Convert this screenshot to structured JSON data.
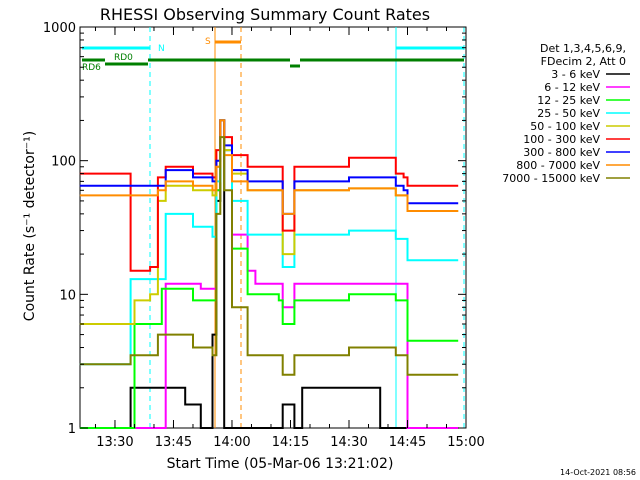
{
  "chart_data": {
    "type": "line",
    "title": "RHESSI Observing Summary Count Rates",
    "xlabel": "Start Time (05-Mar-06 13:21:02)",
    "ylabel": "Count Rate (s⁻¹ detector⁻¹)",
    "y_scale": "log",
    "ylim": [
      1,
      1000
    ],
    "xlim": [
      "13:21:02",
      "15:00:00"
    ],
    "x_ticks": [
      "13:30",
      "13:45",
      "14:00",
      "14:15",
      "14:30",
      "14:45",
      "15:00"
    ],
    "y_ticks": [
      "1",
      "10",
      "100",
      "1000"
    ],
    "legend_header": [
      "Det 1,3,4,5,6,9,",
      "FDecim 2, Att 0"
    ],
    "legend_position": "right",
    "timestamp": "14-Oct-2021 08:56",
    "flags": [
      {
        "label": "N",
        "color": "#00ffff"
      },
      {
        "label": "S",
        "color": "#ff8c00"
      },
      {
        "label": "RD0",
        "color": "#007f00"
      },
      {
        "label": "RD6",
        "color": "#007f00"
      }
    ],
    "series": [
      {
        "name": "3 - 6 keV",
        "color": "#000000",
        "points": [
          [
            "13:21",
            1
          ],
          [
            "13:33",
            1
          ],
          [
            "13:34",
            2
          ],
          [
            "13:41",
            2
          ],
          [
            "13:48",
            1.5
          ],
          [
            "13:52",
            1
          ],
          [
            "13:55",
            5
          ],
          [
            "13:56",
            50
          ],
          [
            "13:57",
            200
          ],
          [
            "13:58",
            1
          ],
          [
            "14:04",
            1
          ],
          [
            "14:06",
            1
          ],
          [
            "14:12",
            1
          ],
          [
            "14:13",
            1.5
          ],
          [
            "14:16",
            1
          ],
          [
            "14:18",
            2
          ],
          [
            "14:35",
            2
          ],
          [
            "14:38",
            1
          ],
          [
            "14:58",
            1
          ]
        ]
      },
      {
        "name": "6 - 12 keV",
        "color": "#ff00ff",
        "points": [
          [
            "13:21",
            1
          ],
          [
            "13:42",
            1
          ],
          [
            "13:43",
            12
          ],
          [
            "13:48",
            12
          ],
          [
            "13:52",
            11
          ],
          [
            "13:54",
            11
          ],
          [
            "13:56",
            60
          ],
          [
            "13:57",
            200
          ],
          [
            "13:58",
            120
          ],
          [
            "14:00",
            28
          ],
          [
            "14:04",
            15
          ],
          [
            "14:06",
            12
          ],
          [
            "14:12",
            12
          ],
          [
            "14:13",
            8
          ],
          [
            "14:16",
            12
          ],
          [
            "14:30",
            12
          ],
          [
            "14:42",
            12
          ],
          [
            "14:44",
            12
          ],
          [
            "14:45",
            1
          ],
          [
            "14:58",
            1
          ]
        ]
      },
      {
        "name": "12 - 25 keV",
        "color": "#00ff00",
        "points": [
          [
            "13:21",
            1
          ],
          [
            "13:34",
            1
          ],
          [
            "13:35",
            6
          ],
          [
            "13:41",
            6
          ],
          [
            "13:42",
            11
          ],
          [
            "13:50",
            9
          ],
          [
            "13:55",
            9
          ],
          [
            "13:56",
            60
          ],
          [
            "13:57",
            200
          ],
          [
            "13:58",
            120
          ],
          [
            "14:00",
            22
          ],
          [
            "14:04",
            10
          ],
          [
            "14:12",
            9
          ],
          [
            "14:13",
            6
          ],
          [
            "14:16",
            9
          ],
          [
            "14:30",
            10
          ],
          [
            "14:42",
            9
          ],
          [
            "14:44",
            9
          ],
          [
            "14:45",
            4.5
          ],
          [
            "14:58",
            4.5
          ]
        ]
      },
      {
        "name": "25 - 50 keV",
        "color": "#00ffff",
        "points": [
          [
            "13:21",
            3
          ],
          [
            "13:33",
            3
          ],
          [
            "13:34",
            13
          ],
          [
            "13:41",
            13
          ],
          [
            "13:43",
            40
          ],
          [
            "13:50",
            32
          ],
          [
            "13:55",
            27
          ],
          [
            "13:56",
            70
          ],
          [
            "13:57",
            200
          ],
          [
            "13:58",
            120
          ],
          [
            "14:00",
            50
          ],
          [
            "14:04",
            28
          ],
          [
            "14:12",
            28
          ],
          [
            "14:13",
            16
          ],
          [
            "14:16",
            28
          ],
          [
            "14:30",
            30
          ],
          [
            "14:42",
            26
          ],
          [
            "14:44",
            26
          ],
          [
            "14:45",
            18
          ],
          [
            "14:58",
            18
          ]
        ]
      },
      {
        "name": "50 - 100 keV",
        "color": "#cccc00",
        "points": [
          [
            "13:21",
            6
          ],
          [
            "13:34",
            6
          ],
          [
            "13:35",
            9
          ],
          [
            "13:39",
            10
          ],
          [
            "13:41",
            50
          ],
          [
            "13:43",
            65
          ],
          [
            "13:50",
            60
          ],
          [
            "13:55",
            55
          ],
          [
            "13:56",
            90
          ],
          [
            "13:57",
            200
          ],
          [
            "13:58",
            120
          ],
          [
            "14:00",
            80
          ],
          [
            "14:04",
            60
          ],
          [
            "14:12",
            60
          ],
          [
            "14:13",
            20
          ],
          [
            "14:16",
            60
          ],
          [
            "14:30",
            62
          ],
          [
            "14:42",
            55
          ],
          [
            "14:44",
            55
          ],
          [
            "14:45",
            42
          ],
          [
            "14:58",
            42
          ]
        ]
      },
      {
        "name": "100 - 300 keV",
        "color": "#ff0000",
        "points": [
          [
            "13:21",
            80
          ],
          [
            "13:33",
            80
          ],
          [
            "13:34",
            15
          ],
          [
            "13:39",
            16
          ],
          [
            "13:41",
            75
          ],
          [
            "13:43",
            90
          ],
          [
            "13:50",
            80
          ],
          [
            "13:55",
            75
          ],
          [
            "13:56",
            120
          ],
          [
            "13:57",
            200
          ],
          [
            "13:58",
            150
          ],
          [
            "14:00",
            110
          ],
          [
            "14:04",
            90
          ],
          [
            "14:12",
            90
          ],
          [
            "14:13",
            30
          ],
          [
            "14:16",
            90
          ],
          [
            "14:30",
            105
          ],
          [
            "14:42",
            80
          ],
          [
            "14:44",
            75
          ],
          [
            "14:45",
            65
          ],
          [
            "14:58",
            65
          ]
        ]
      },
      {
        "name": "300 - 800 keV",
        "color": "#0000ff",
        "points": [
          [
            "13:21",
            65
          ],
          [
            "13:34",
            65
          ],
          [
            "13:41",
            65
          ],
          [
            "13:43",
            85
          ],
          [
            "13:50",
            75
          ],
          [
            "13:55",
            70
          ],
          [
            "13:56",
            100
          ],
          [
            "13:57",
            200
          ],
          [
            "13:58",
            130
          ],
          [
            "14:00",
            85
          ],
          [
            "14:04",
            70
          ],
          [
            "14:12",
            70
          ],
          [
            "14:13",
            40
          ],
          [
            "14:16",
            70
          ],
          [
            "14:30",
            75
          ],
          [
            "14:42",
            65
          ],
          [
            "14:44",
            60
          ],
          [
            "14:45",
            48
          ],
          [
            "14:58",
            48
          ]
        ]
      },
      {
        "name": "800 - 7000 keV",
        "color": "#ff8c00",
        "points": [
          [
            "13:21",
            55
          ],
          [
            "13:34",
            55
          ],
          [
            "13:41",
            60
          ],
          [
            "13:43",
            70
          ],
          [
            "13:50",
            65
          ],
          [
            "13:55",
            60
          ],
          [
            "13:56",
            90
          ],
          [
            "13:57",
            200
          ],
          [
            "13:58",
            110
          ],
          [
            "14:00",
            70
          ],
          [
            "14:04",
            60
          ],
          [
            "14:12",
            60
          ],
          [
            "14:13",
            40
          ],
          [
            "14:16",
            60
          ],
          [
            "14:30",
            62
          ],
          [
            "14:42",
            55
          ],
          [
            "14:44",
            55
          ],
          [
            "14:45",
            42
          ],
          [
            "14:58",
            42
          ]
        ]
      },
      {
        "name": "7000 - 15000 keV",
        "color": "#808000",
        "points": [
          [
            "13:21",
            3
          ],
          [
            "13:34",
            3.5
          ],
          [
            "13:41",
            5
          ],
          [
            "13:43",
            5
          ],
          [
            "13:50",
            4
          ],
          [
            "13:55",
            3.5
          ],
          [
            "13:56",
            40
          ],
          [
            "13:57",
            150
          ],
          [
            "13:58",
            60
          ],
          [
            "14:00",
            8
          ],
          [
            "14:04",
            3.5
          ],
          [
            "14:12",
            3.5
          ],
          [
            "14:13",
            2.5
          ],
          [
            "14:16",
            3.5
          ],
          [
            "14:30",
            4
          ],
          [
            "14:42",
            3.5
          ],
          [
            "14:44",
            3.5
          ],
          [
            "14:45",
            2.5
          ],
          [
            "14:58",
            2.5
          ]
        ]
      }
    ]
  }
}
